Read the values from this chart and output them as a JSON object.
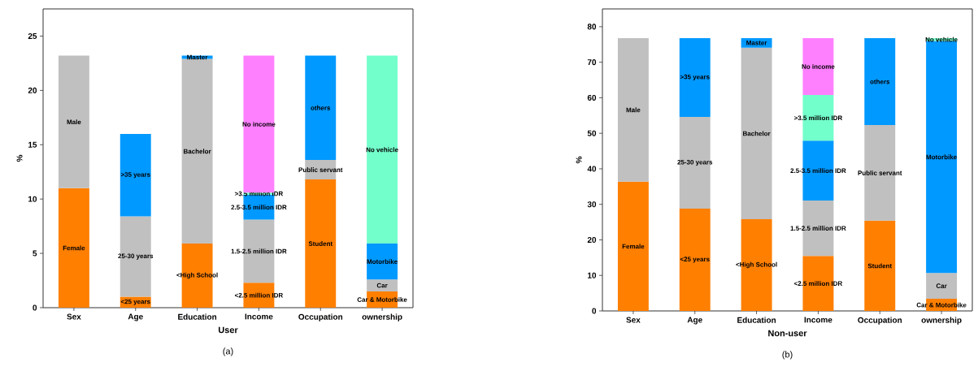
{
  "chart_data": [
    {
      "type": "bar",
      "stacked": true,
      "xlabel": "User",
      "ylabel": "%",
      "annotations": [
        "(a)"
      ],
      "categories": [
        "Sex",
        "Age",
        "Education",
        "Income",
        "Occupation",
        "ownership"
      ],
      "ylim": [
        0,
        27.5
      ],
      "yticks": [
        0,
        5,
        10,
        15,
        20,
        25
      ],
      "series": [
        {
          "color": "#ff7f00",
          "values": [
            11.0,
            1.0,
            5.9,
            2.3,
            11.8,
            1.5
          ],
          "value_labels": [
            "Female",
            "<25 years",
            "<High School",
            "<2.5 million IDR",
            "Student",
            "Car & Motorbike"
          ]
        },
        {
          "color": "#c0c0c0",
          "values": [
            12.2,
            7.4,
            17.0,
            5.8,
            1.8,
            1.1
          ],
          "value_labels": [
            "Male",
            "25-30 years",
            "Bachelor",
            "1.5-2.5 million IDR",
            "Public servant",
            "Car"
          ]
        },
        {
          "color": "#0099ff",
          "values": [
            null,
            7.6,
            0.3,
            2.3,
            9.6,
            3.3
          ],
          "value_labels": [
            null,
            ">35 years",
            "Master",
            "2.5-3.5 million IDR",
            "others",
            "Motorbike"
          ]
        },
        {
          "color": "#73ffcc",
          "values": [
            null,
            null,
            null,
            0.2,
            null,
            17.3
          ],
          "value_labels": [
            null,
            null,
            null,
            ">3.5 million IDR",
            null,
            "No vehicle"
          ]
        },
        {
          "color": "#ff80ff",
          "values": [
            null,
            null,
            null,
            12.6,
            null,
            null
          ],
          "value_labels": [
            null,
            null,
            null,
            "No income",
            null,
            null
          ]
        }
      ]
    },
    {
      "type": "bar",
      "stacked": true,
      "xlabel": "Non-user",
      "ylabel": "%",
      "annotations": [
        "(b)"
      ],
      "categories": [
        "Sex",
        "Age",
        "Education",
        "Income",
        "Occupation",
        "ownership"
      ],
      "ylim": [
        0,
        85
      ],
      "yticks": [
        0,
        10,
        20,
        30,
        40,
        50,
        60,
        70,
        80
      ],
      "series": [
        {
          "color": "#ff7f00",
          "values": [
            36.4,
            28.8,
            25.8,
            15.5,
            25.4,
            3.4
          ],
          "value_labels": [
            "Female",
            "<25 years",
            "<High School",
            "<2.5 million IDR",
            "Student",
            "Car & Motorbike"
          ]
        },
        {
          "color": "#c0c0c0",
          "values": [
            40.4,
            25.8,
            48.3,
            15.6,
            26.9,
            7.3
          ],
          "value_labels": [
            "Male",
            "25-30 years",
            "Bachelor",
            "1.5-2.5 million IDR",
            "Public servant",
            "Car"
          ]
        },
        {
          "color": "#0099ff",
          "values": [
            null,
            22.2,
            2.7,
            16.8,
            24.5,
            65.3
          ],
          "value_labels": [
            null,
            ">35 years",
            "Master",
            "2.5-3.5 million IDR",
            "others",
            "Motorbike"
          ]
        },
        {
          "color": "#73ffcc",
          "values": [
            null,
            null,
            null,
            12.9,
            null,
            0.8
          ],
          "value_labels": [
            null,
            null,
            null,
            ">3.5 million IDR",
            null,
            "No vehicle"
          ]
        },
        {
          "color": "#ff80ff",
          "values": [
            null,
            null,
            null,
            16.0,
            null,
            null
          ],
          "value_labels": [
            null,
            null,
            null,
            "No income",
            null,
            null
          ]
        }
      ]
    }
  ]
}
